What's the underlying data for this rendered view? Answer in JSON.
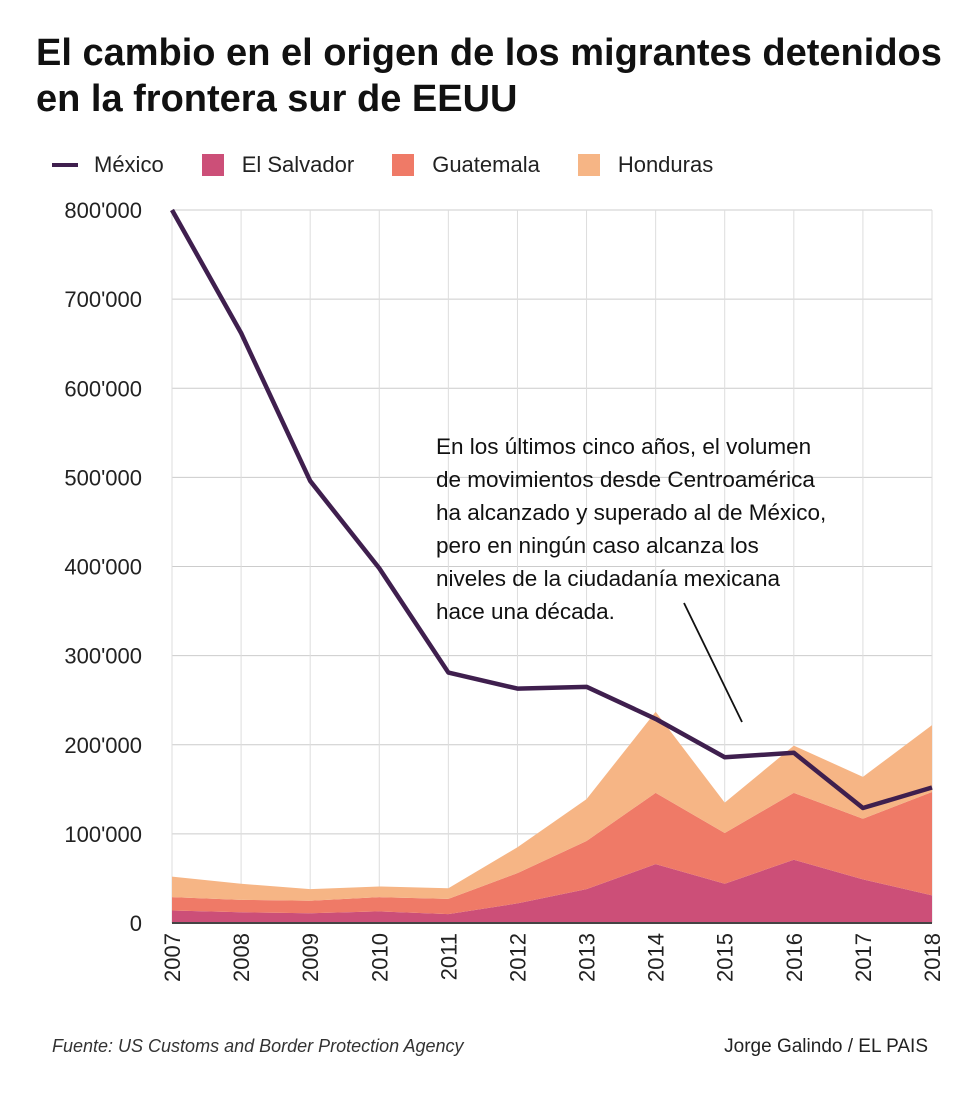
{
  "title": "El cambio en el origen de los migrantes detenidos en la frontera sur de EEUU",
  "colors": {
    "mexico": "#3f1f4e",
    "el_salvador": "#cc4f78",
    "guatemala": "#ef7a67",
    "honduras": "#f6b585",
    "grid": "#cccccc"
  },
  "chart_data": {
    "type": "area",
    "title": "El cambio en el origen de los migrantes detenidos en la frontera sur de EEUU",
    "x": [
      "2007",
      "2008",
      "2009",
      "2010",
      "2011",
      "2012",
      "2013",
      "2014",
      "2015",
      "2016",
      "2017",
      "2018"
    ],
    "ylim": [
      0,
      800000
    ],
    "yticks": [
      0,
      100000,
      200000,
      300000,
      400000,
      500000,
      600000,
      700000,
      800000
    ],
    "ytick_labels": [
      "0",
      "100'000",
      "200'000",
      "300'000",
      "400'000",
      "500'000",
      "600'000",
      "700'000",
      "800'000"
    ],
    "grid": true,
    "legend": "top",
    "stacked_series": [
      {
        "name": "El Salvador",
        "values": [
          14000,
          12000,
          11000,
          13000,
          10000,
          22000,
          38000,
          66000,
          44000,
          71000,
          49000,
          31000
        ]
      },
      {
        "name": "Guatemala",
        "values": [
          15000,
          14000,
          14000,
          16000,
          17000,
          34000,
          54000,
          80000,
          57000,
          75000,
          68000,
          116000
        ]
      },
      {
        "name": "Honduras",
        "values": [
          23000,
          18000,
          13000,
          12000,
          12000,
          29000,
          47000,
          91000,
          34000,
          53000,
          47000,
          75000
        ]
      }
    ],
    "line_series": {
      "name": "México",
      "values": [
        800000,
        662000,
        496000,
        398000,
        281000,
        263000,
        265000,
        229000,
        186000,
        191000,
        129000,
        152000
      ]
    },
    "annotation": "En los últimos cinco años, el volumen de movimientos desde Centroamérica ha alcanzado y superado al de México, pero en ningún caso alcanza los niveles de la ciudadanía mexicana hace una década."
  },
  "annotation_lines": [
    "En los últimos cinco años, el volumen",
    "de movimientos desde Centroamérica",
    "ha alcanzado y superado al de México,",
    "pero en ningún caso alcanza los",
    "niveles de la ciudadanía mexicana",
    "hace una década."
  ],
  "legend": {
    "mexico": "México",
    "el_salvador": "El Salvador",
    "guatemala": "Guatemala",
    "honduras": "Honduras"
  },
  "source": "Fuente: US Customs and Border Protection Agency",
  "credit": "Jorge Galindo / EL PAIS"
}
